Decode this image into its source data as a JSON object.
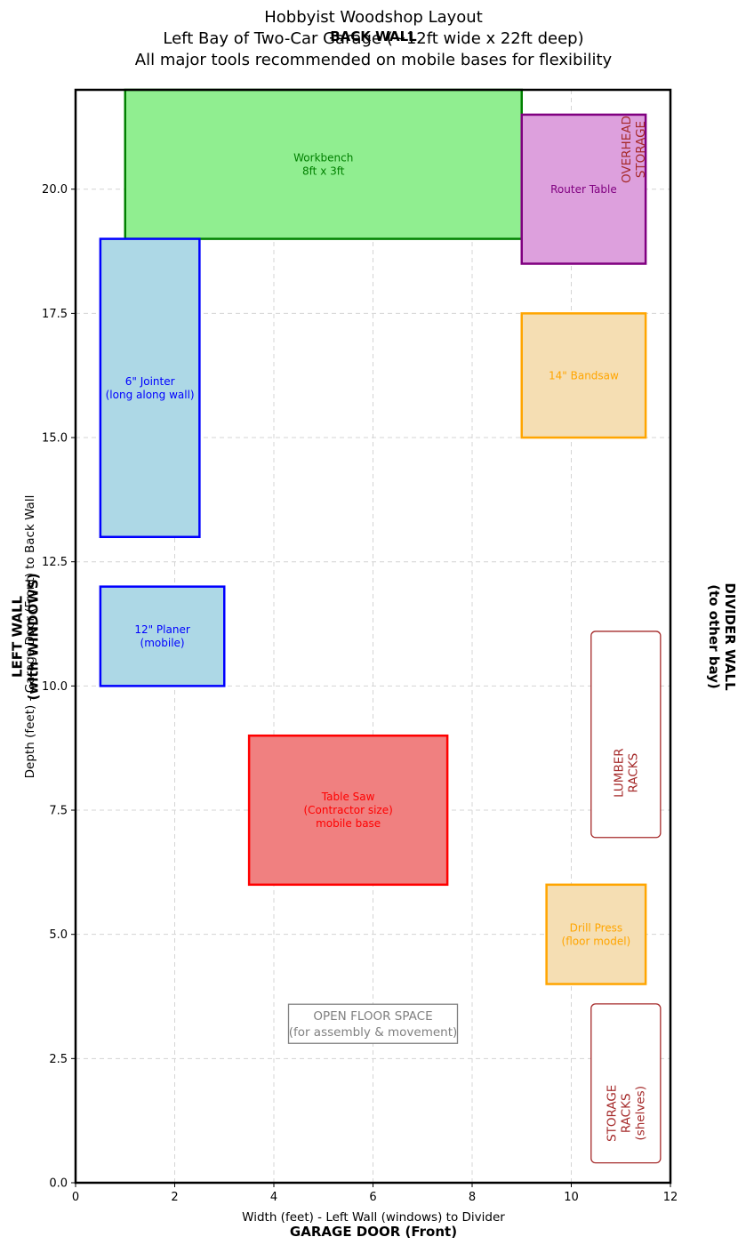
{
  "chart_data": {
    "type": "layout-diagram",
    "title_lines": [
      "Hobbyist Woodshop Layout",
      "Left Bay of Two-Car Garage (~12ft wide x 22ft deep)",
      "All major tools recommended on mobile bases for flexibility"
    ],
    "xlabel": "Width (feet) - Left Wall (windows) to Divider",
    "ylabel": "Depth (feet) - Garage Door (Front) to Back Wall",
    "xlim": [
      0,
      12
    ],
    "ylim": [
      0,
      22
    ],
    "x_ticks": [
      "0",
      "2",
      "4",
      "6",
      "8",
      "10",
      "12"
    ],
    "x_tick_values": [
      0,
      2,
      4,
      6,
      8,
      10,
      12
    ],
    "y_ticks": [
      "0.0",
      "2.5",
      "5.0",
      "7.5",
      "10.0",
      "12.5",
      "15.0",
      "17.5",
      "20.0"
    ],
    "y_tick_values": [
      0,
      2.5,
      5,
      7.5,
      10,
      12.5,
      15,
      17.5,
      20
    ],
    "grid": true,
    "wall_labels": {
      "back": "BACK WALL",
      "front": "GARAGE DOOR (Front)",
      "left": [
        "LEFT WALL",
        "(with WINDOWS)"
      ],
      "right": [
        "DIVIDER WALL",
        "(to other bay)"
      ]
    },
    "tools": [
      {
        "name": "workbench",
        "lines": [
          "Workbench",
          "8ft x 3ft"
        ],
        "x": 1,
        "y": 19,
        "w": 8,
        "h": 3,
        "fill": "#90ee90",
        "stroke": "#008000"
      },
      {
        "name": "router-table",
        "lines": [
          "Router Table"
        ],
        "x": 9,
        "y": 18.5,
        "w": 2.5,
        "h": 3,
        "fill": "#dda0dd",
        "stroke": "#800080"
      },
      {
        "name": "jointer",
        "lines": [
          "6\" Jointer",
          "(long along wall)"
        ],
        "x": 0.5,
        "y": 13,
        "w": 2,
        "h": 6,
        "fill": "#add8e6",
        "stroke": "#0000ff"
      },
      {
        "name": "bandsaw",
        "lines": [
          "14\" Bandsaw"
        ],
        "x": 9,
        "y": 15,
        "w": 2.5,
        "h": 2.5,
        "fill": "#f5deb3",
        "stroke": "#ffa500"
      },
      {
        "name": "planer",
        "lines": [
          "12\" Planer",
          "(mobile)"
        ],
        "x": 0.5,
        "y": 10,
        "w": 2.5,
        "h": 2,
        "fill": "#add8e6",
        "stroke": "#0000ff"
      },
      {
        "name": "table-saw",
        "lines": [
          "Table Saw",
          "(Contractor size)",
          "mobile base"
        ],
        "x": 3.5,
        "y": 6,
        "w": 4,
        "h": 3,
        "fill": "#f08080",
        "stroke": "#ff0000"
      },
      {
        "name": "drill-press",
        "lines": [
          "Drill Press",
          "(floor model)"
        ],
        "x": 9.5,
        "y": 4,
        "w": 2,
        "h": 2,
        "fill": "#f5deb3",
        "stroke": "#ffa500"
      }
    ],
    "storage": [
      {
        "name": "overhead-storage",
        "lines": [
          "OVERHEAD",
          "STORAGE"
        ],
        "cx": 11.25,
        "cy": 20.8
      },
      {
        "name": "lumber-racks",
        "lines": [
          "LUMBER",
          "RACKS"
        ],
        "x": 10.4,
        "y": 6.95,
        "w": 1.4,
        "h": 4.15,
        "cx": 11.1,
        "cy": 8.25
      },
      {
        "name": "storage-racks",
        "lines": [
          "STORAGE",
          "RACKS",
          "(shelves)"
        ],
        "x": 10.4,
        "y": 0.4,
        "w": 1.4,
        "h": 3.2,
        "cx": 11.1,
        "cy": 1.4
      }
    ],
    "open_floor": {
      "lines": [
        "OPEN FLOOR SPACE",
        "(for assembly & movement)"
      ],
      "cx": 6,
      "cy": 3.2
    }
  }
}
